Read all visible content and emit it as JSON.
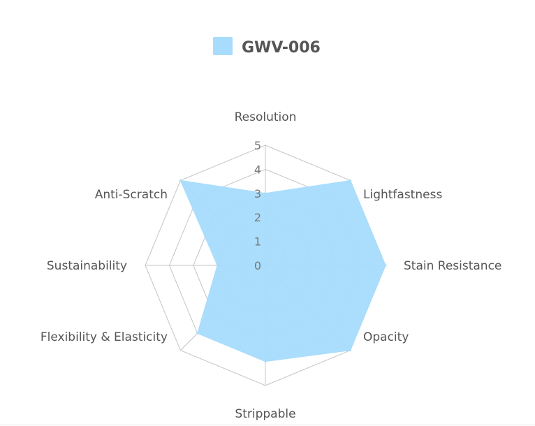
{
  "chart_data": {
    "type": "radar",
    "title": "",
    "axes": [
      "Resolution",
      "Lightfastness",
      "Stain Resistance",
      "Opacity",
      "Strippable",
      "Flexibility & Elasticity",
      "Sustainability",
      "Anti-Scratch"
    ],
    "rlim": [
      0,
      5
    ],
    "ticks": [
      "0",
      "1",
      "2",
      "3",
      "4",
      "5"
    ],
    "grid": true,
    "legend_position": "top-center",
    "series": [
      {
        "name": "GWV-006",
        "values": [
          3,
          5,
          5,
          5,
          4,
          4,
          2,
          5
        ],
        "color": "#a7dcfc"
      }
    ]
  }
}
